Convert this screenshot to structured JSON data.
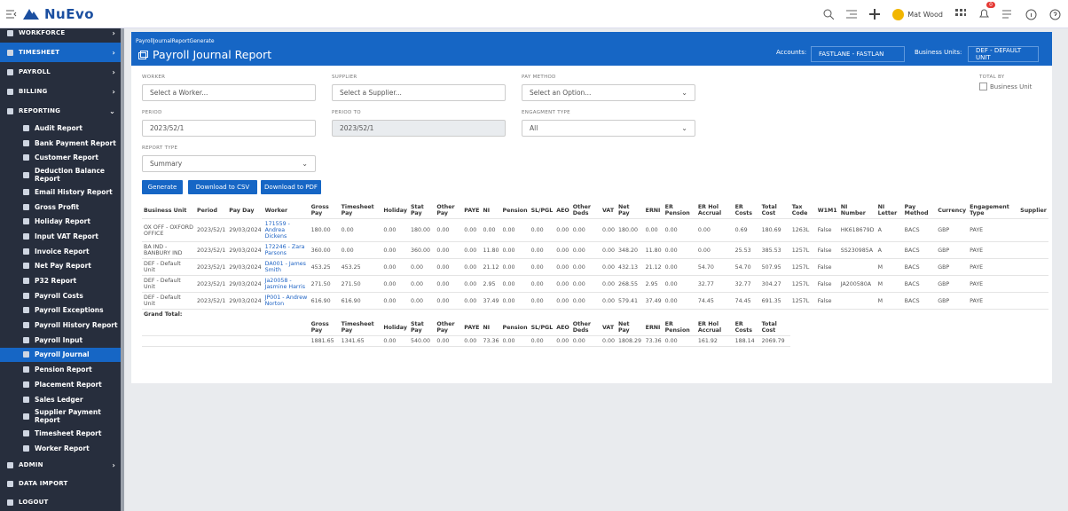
{
  "topbar": {
    "logo": "NuEvo",
    "user": "Mat Wood",
    "badge": "0"
  },
  "sidebar": {
    "top": [
      "WORKFORCE",
      "TIMESHEET",
      "PAYROLL",
      "BILLING",
      "REPORTING"
    ],
    "reports": [
      "Audit Report",
      "Bank Payment Report",
      "Customer Report",
      "Deduction Balance Report",
      "Email History Report",
      "Gross Profit",
      "Holiday Report",
      "Input VAT Report",
      "Invoice Report",
      "Net Pay Report",
      "P32 Report",
      "Payroll Costs",
      "Payroll Exceptions",
      "Payroll History Report",
      "Payroll Input",
      "Payroll Journal",
      "Pension Report",
      "Placement Report",
      "Sales Ledger",
      "Supplier Payment Report",
      "Timesheet Report",
      "Worker Report"
    ],
    "bottom": [
      "ADMIN",
      "DATA IMPORT",
      "LOGOUT"
    ]
  },
  "header": {
    "breadcrumb": "PayrollJournalReportGenerate",
    "title": "Payroll Journal Report",
    "accounts_label": "Accounts:",
    "accounts": "FASTLANE - FASTLAN",
    "units_label": "Business Units:",
    "units": "DEF - DEFAULT UNIT"
  },
  "form": {
    "fields": [
      {
        "label": "WORKER",
        "value": "Select a Worker..."
      },
      {
        "label": "SUPPLIER",
        "value": "Select a Supplier..."
      },
      {
        "label": "PAY METHOD",
        "value": "Select an Option..."
      },
      {
        "label": "PERIOD",
        "value": "2023/52/1"
      },
      {
        "label": "PERIOD TO",
        "value": "2023/52/1"
      },
      {
        "label": "ENGAGMENT TYPE",
        "value": "All"
      },
      {
        "label": "REPORT TYPE",
        "value": "Summary"
      }
    ],
    "total_by": "TOTAL BY",
    "checkbox": "Business Unit",
    "buttons": [
      "Generate",
      "Download to CSV",
      "Download to PDF"
    ]
  },
  "table": {
    "columns": [
      "Business Unit",
      "Period",
      "Pay Day",
      "Worker",
      "Gross Pay",
      "Timesheet Pay",
      "Holiday",
      "Stat Pay",
      "Other Pay",
      "PAYE",
      "NI",
      "Pension",
      "SL/PGL",
      "AEO",
      "Other Deds",
      "VAT",
      "Net Pay",
      "ERNI",
      "ER Pension",
      "ER Hol Accrual",
      "ER Costs",
      "Total Cost",
      "Tax Code",
      "W1M1",
      "NI Number",
      "NI Letter",
      "Pay Method",
      "Currency",
      "Engagement Type",
      "Supplier"
    ],
    "rows": [
      [
        "OX OFF - OXFORD OFFICE",
        "2023/52/1",
        "29/03/2024",
        "171559 - Andrea Dickens",
        "180.00",
        "0.00",
        "0.00",
        "180.00",
        "0.00",
        "0.00",
        "0.00",
        "0.00",
        "0.00",
        "0.00",
        "0.00",
        "0.00",
        "180.00",
        "0.00",
        "0.00",
        "0.00",
        "0.69",
        "180.69",
        "1263L",
        "False",
        "HK618679D",
        "A",
        "BACS",
        "GBP",
        "PAYE",
        null
      ],
      [
        "BA IND - BANBURY IND",
        "2023/52/1",
        "29/03/2024",
        "172246 - Zara Parsons",
        "360.00",
        "0.00",
        "0.00",
        "360.00",
        "0.00",
        "0.00",
        "11.80",
        "0.00",
        "0.00",
        "0.00",
        "0.00",
        "0.00",
        "348.20",
        "11.80",
        "0.00",
        "0.00",
        "25.53",
        "385.53",
        "1257L",
        "False",
        "SS230985A",
        "A",
        "BACS",
        "GBP",
        "PAYE",
        null
      ],
      [
        "DEF - Default Unit",
        "2023/52/1",
        "29/03/2024",
        "DA001 - James Smith",
        "453.25",
        "453.25",
        "0.00",
        "0.00",
        "0.00",
        "0.00",
        "21.12",
        "0.00",
        "0.00",
        "0.00",
        "0.00",
        "0.00",
        "432.13",
        "21.12",
        "0.00",
        "54.70",
        "54.70",
        "507.95",
        "1257L",
        "False",
        null,
        "M",
        "BACS",
        "GBP",
        "PAYE",
        null
      ],
      [
        "DEF - Default Unit",
        "2023/52/1",
        "29/03/2024",
        "Ja20058 - Jasmine Harris",
        "271.50",
        "271.50",
        "0.00",
        "0.00",
        "0.00",
        "0.00",
        "2.95",
        "0.00",
        "0.00",
        "0.00",
        "0.00",
        "0.00",
        "268.55",
        "2.95",
        "0.00",
        "32.77",
        "32.77",
        "304.27",
        "1257L",
        "False",
        "JA200580A",
        "M",
        "BACS",
        "GBP",
        "PAYE",
        null
      ],
      [
        "DEF - Default Unit",
        "2023/52/1",
        "29/03/2024",
        "JP001 - Andrew Norton",
        "616.90",
        "616.90",
        "0.00",
        "0.00",
        "0.00",
        "0.00",
        "37.49",
        "0.00",
        "0.00",
        "0.00",
        "0.00",
        "0.00",
        "579.41",
        "37.49",
        "0.00",
        "74.45",
        "74.45",
        "691.35",
        "1257L",
        "False",
        null,
        "M",
        "BACS",
        "GBP",
        "PAYE",
        null
      ]
    ],
    "grand_total": "Grand Total:",
    "total_columns": [
      "Gross Pay",
      "Timesheet Pay",
      "Holiday",
      "Stat Pay",
      "Other Pay",
      "PAYE",
      "NI",
      "Pension",
      "SL/PGL",
      "AEO",
      "Other Deds",
      "VAT",
      "Net Pay",
      "ERNI",
      "ER Pension",
      "ER Hol Accrual",
      "ER Costs",
      "Total Cost"
    ],
    "totals": [
      "1881.65",
      "1341.65",
      "0.00",
      "540.00",
      "0.00",
      "0.00",
      "73.36",
      "0.00",
      "0.00",
      "0.00",
      "0.00",
      "0.00",
      "1808.29",
      "73.36",
      "0.00",
      "161.92",
      "188.14",
      "2069.79"
    ]
  }
}
